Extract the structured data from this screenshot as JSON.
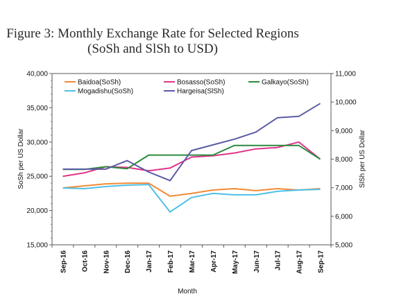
{
  "chart_data": {
    "type": "line",
    "title": "Figure 3: Monthly Exchange Rate for Selected Regions",
    "subtitle": "(SoSh and SlSh to USD)",
    "xlabel": "Month",
    "ylabel": "SoSh per US Dollar",
    "y2label": "SlSh per US Dollar",
    "categories": [
      "Sep-16",
      "Oct-16",
      "Nov-16",
      "Dec-16",
      "Jan-17",
      "Feb-17",
      "Mar-17",
      "Apr-17",
      "May-17",
      "Jun-17",
      "Jul-17",
      "Aug-17",
      "Sep-17"
    ],
    "ylim": [
      15000,
      40000
    ],
    "y2lim": [
      5000,
      11000
    ],
    "yticks": [
      "15,000",
      "20,000",
      "25,000",
      "30,000",
      "35,000",
      "40,000"
    ],
    "y2ticks": [
      "5,000",
      "6,000",
      "7,000",
      "8,000",
      "9,000",
      "10,000",
      "11,000"
    ],
    "legend_position": "top",
    "series": [
      {
        "name": "Baidoa(SoSh)",
        "axis": "left",
        "color": "#f28a35",
        "values": [
          23300,
          23600,
          23900,
          24000,
          24000,
          22100,
          22500,
          23000,
          23200,
          22900,
          23200,
          23000,
          23200
        ]
      },
      {
        "name": "Bosasso(SoSh)",
        "axis": "left",
        "color": "#e0338a",
        "values": [
          25000,
          25500,
          26400,
          26300,
          25800,
          26200,
          27800,
          28000,
          28400,
          29000,
          29200,
          30000,
          27500
        ]
      },
      {
        "name": "Galkayo(SoSh)",
        "axis": "left",
        "color": "#2b8a3e",
        "values": [
          26000,
          26000,
          26400,
          26100,
          28100,
          28100,
          28100,
          28100,
          29500,
          29500,
          29500,
          29500,
          27500
        ]
      },
      {
        "name": "Mogadishu(SoSh)",
        "axis": "left",
        "color": "#4ec0e8",
        "values": [
          23300,
          23200,
          23500,
          23700,
          23800,
          19800,
          21900,
          22500,
          22300,
          22300,
          22800,
          23000,
          23100
        ]
      },
      {
        "name": "Hargeisa(SlSh)",
        "axis": "right",
        "color": "#5a5aa6",
        "values": [
          7650,
          7650,
          7650,
          7950,
          7550,
          7250,
          8300,
          8500,
          8700,
          8950,
          9450,
          9500,
          9950
        ]
      }
    ]
  }
}
